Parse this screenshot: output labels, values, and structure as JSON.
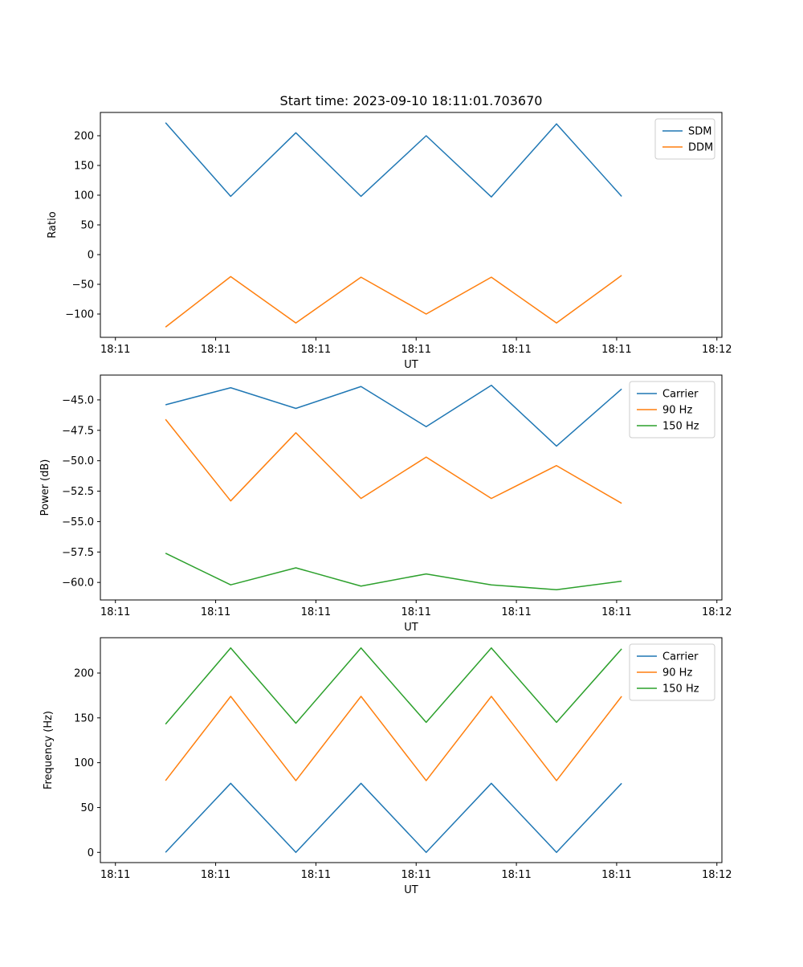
{
  "figure_title": "Start time: 2023-09-10 18:11:01.703670",
  "chart_data": [
    {
      "type": "line",
      "xlabel": "UT",
      "ylabel": "Ratio",
      "x_seconds": [
        5,
        11.5,
        18,
        24.5,
        31,
        37.5,
        44,
        50.5
      ],
      "xlim": [
        -1.5,
        60.5
      ],
      "xticks": {
        "values": [
          0,
          10,
          20,
          30,
          40,
          50,
          60
        ],
        "labels": [
          "18:11",
          "18:11",
          "18:11",
          "18:11",
          "18:11",
          "18:11",
          "18:12"
        ]
      },
      "ylim": [
        -139.2,
        239.2
      ],
      "yticks": {
        "values": [
          200,
          150,
          100,
          50,
          0,
          -50,
          -100
        ],
        "labels": [
          "200",
          "150",
          "100",
          "50",
          "0",
          "−50",
          "−100"
        ]
      },
      "legend_position": "upper right",
      "grid": false,
      "series": [
        {
          "name": "SDM",
          "color": "#1f77b4",
          "values": [
            222,
            98,
            205,
            98,
            200,
            97,
            220,
            98
          ]
        },
        {
          "name": "DDM",
          "color": "#ff7f0e",
          "values": [
            -122,
            -37,
            -115,
            -38,
            -100,
            -38,
            -115,
            -35
          ]
        }
      ]
    },
    {
      "type": "line",
      "xlabel": "UT",
      "ylabel": "Power (dB)",
      "x_seconds": [
        5,
        11.5,
        18,
        24.5,
        31,
        37.5,
        44,
        50.5
      ],
      "xlim": [
        -1.5,
        60.5
      ],
      "xticks": {
        "values": [
          0,
          10,
          20,
          30,
          40,
          50,
          60
        ],
        "labels": [
          "18:11",
          "18:11",
          "18:11",
          "18:11",
          "18:11",
          "18:11",
          "18:12"
        ]
      },
      "ylim": [
        -61.44,
        -42.96
      ],
      "yticks": {
        "values": [
          -45.0,
          -47.5,
          -50.0,
          -52.5,
          -55.0,
          -57.5,
          -60.0
        ],
        "labels": [
          "−45.0",
          "−47.5",
          "−50.0",
          "−52.5",
          "−55.0",
          "−57.5",
          "−60.0"
        ]
      },
      "legend_position": "upper right",
      "grid": false,
      "series": [
        {
          "name": "Carrier",
          "color": "#1f77b4",
          "values": [
            -45.4,
            -44.0,
            -45.7,
            -43.9,
            -47.2,
            -43.8,
            -48.8,
            -44.1
          ]
        },
        {
          "name": "90 Hz",
          "color": "#ff7f0e",
          "values": [
            -46.6,
            -53.3,
            -47.7,
            -53.1,
            -49.7,
            -53.1,
            -50.4,
            -53.5
          ]
        },
        {
          "name": "150 Hz",
          "color": "#2ca02c",
          "values": [
            -57.6,
            -60.2,
            -58.8,
            -60.3,
            -59.3,
            -60.2,
            -60.6,
            -59.9
          ]
        }
      ]
    },
    {
      "type": "line",
      "xlabel": "UT",
      "ylabel": "Frequency (Hz)",
      "x_seconds": [
        5,
        11.5,
        18,
        24.5,
        31,
        37.5,
        44,
        50.5
      ],
      "xlim": [
        -1.5,
        60.5
      ],
      "xticks": {
        "values": [
          0,
          10,
          20,
          30,
          40,
          50,
          60
        ],
        "labels": [
          "18:11",
          "18:11",
          "18:11",
          "18:11",
          "18:11",
          "18:11",
          "18:12"
        ]
      },
      "ylim": [
        -11.4,
        239.4
      ],
      "yticks": {
        "values": [
          0,
          50,
          100,
          150,
          200
        ],
        "labels": [
          "0",
          "50",
          "100",
          "150",
          "200"
        ]
      },
      "legend_position": "upper right",
      "grid": false,
      "series": [
        {
          "name": "Carrier",
          "color": "#1f77b4",
          "values": [
            0,
            77,
            0,
            77,
            0,
            77,
            0,
            77
          ]
        },
        {
          "name": "90 Hz",
          "color": "#ff7f0e",
          "values": [
            80,
            174,
            80,
            174,
            80,
            174,
            80,
            174
          ]
        },
        {
          "name": "150 Hz",
          "color": "#2ca02c",
          "values": [
            143,
            228,
            144,
            228,
            145,
            228,
            145,
            227
          ]
        }
      ]
    }
  ]
}
